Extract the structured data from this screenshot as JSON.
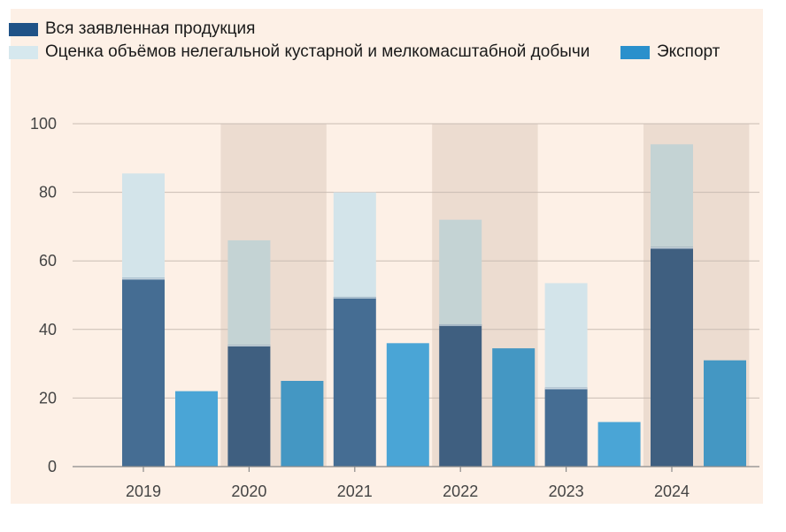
{
  "chart_data": {
    "type": "bar",
    "categories": [
      "2019",
      "2020",
      "2021",
      "2022",
      "2023",
      "2024"
    ],
    "series": [
      {
        "name": "Вся заявленная продукция",
        "values": [
          55,
          35.5,
          49.5,
          41.5,
          23,
          64
        ]
      },
      {
        "name": "Оценка объёмов нелегальной кустарной и мелкомасштабной добычи",
        "values": [
          30.5,
          30.5,
          30.5,
          30.5,
          30.5,
          30
        ]
      },
      {
        "name": "Экспорт",
        "values": [
          22,
          25,
          36,
          34.5,
          13,
          31
        ]
      }
    ],
    "ylim": [
      0,
      100
    ],
    "yticks": [
      0,
      20,
      40,
      60,
      80,
      100
    ],
    "grid": true,
    "legend_position": "top",
    "colors": {
      "declared": "#456d93",
      "declared_on_band": "#3f5f80",
      "illegal": "#d3e4ea",
      "illegal_on_band": "#c4d3d4",
      "export": "#4aa5d6",
      "export_on_band": "#4497c3",
      "band": "#ecdcd0",
      "grid": "#c9bdb3"
    },
    "legend_swatches": {
      "declared": "#1f5287",
      "illegal": "#d6e8ee",
      "export": "#2a90cc"
    }
  }
}
